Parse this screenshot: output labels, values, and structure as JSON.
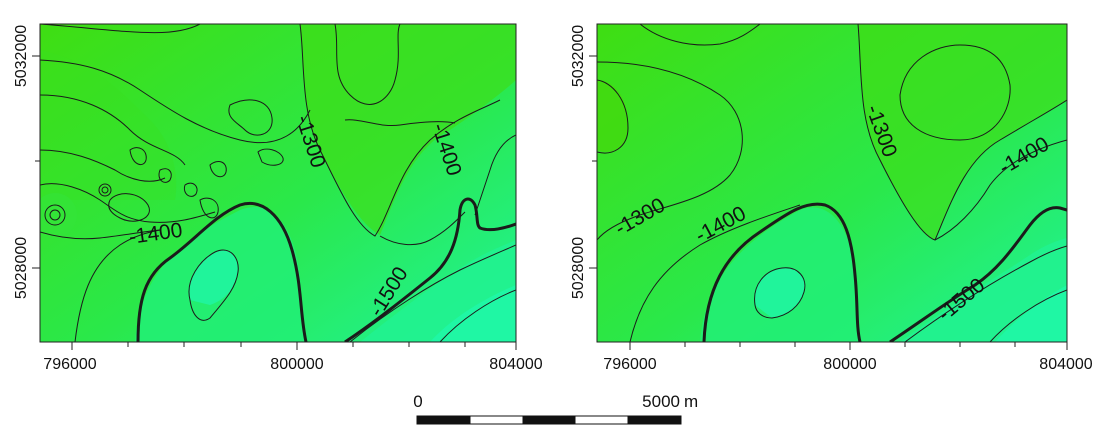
{
  "maps": [
    {
      "id": "left",
      "x_ticks": [
        "796000",
        "800000",
        "804000"
      ],
      "y_ticks": [
        "5032000",
        "5028000"
      ],
      "contour_labels": [
        "-1300",
        "-1400",
        "-1400",
        "-1500"
      ]
    },
    {
      "id": "right",
      "x_ticks": [
        "796000",
        "800000",
        "804000"
      ],
      "y_ticks": [
        "5032000",
        "5028000"
      ],
      "contour_labels": [
        "-1300",
        "-1300",
        "-1400",
        "-1400",
        "-1500"
      ]
    }
  ],
  "scale_bar": {
    "start_label": "0",
    "end_label": "5000",
    "unit": "m",
    "segments": 5
  },
  "colors": {
    "high": "#39e014",
    "mid": "#22ee66",
    "low": "#1ff59e",
    "contour": "#1b1b1b"
  }
}
